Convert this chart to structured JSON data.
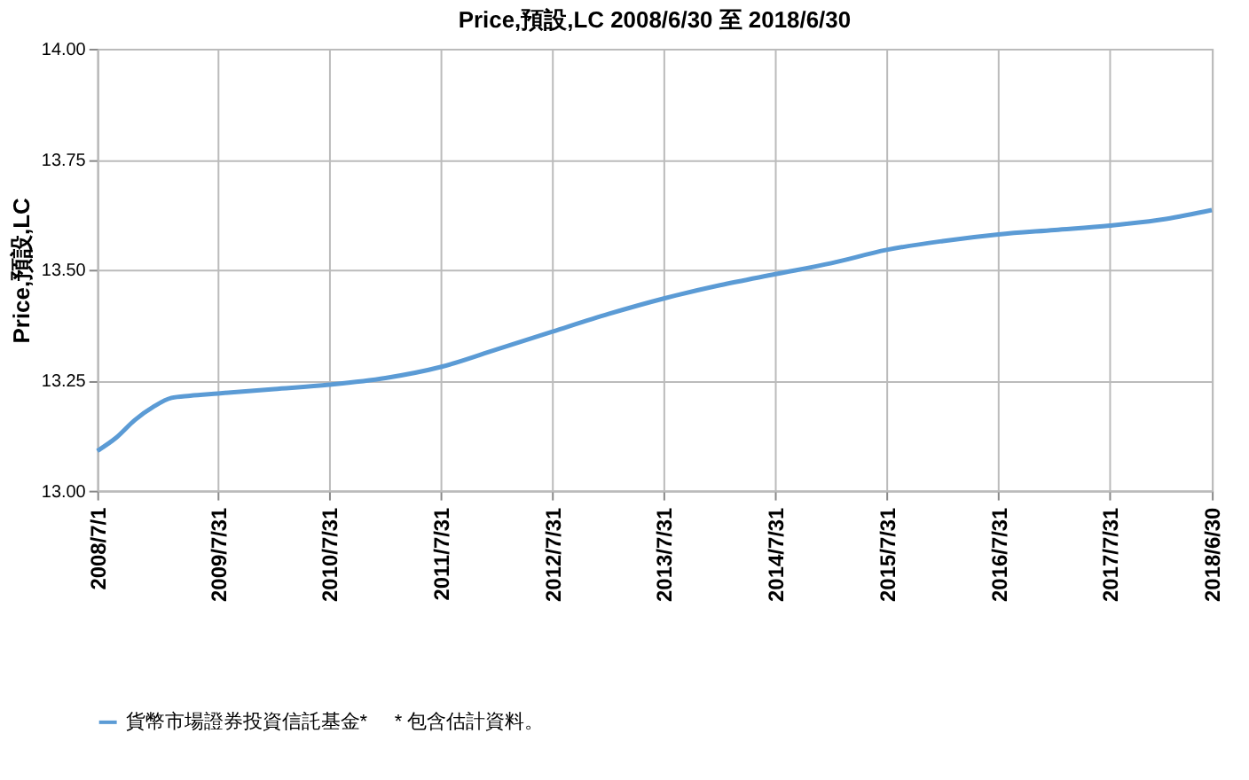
{
  "chart_data": {
    "type": "line",
    "title": "Price,預設,LC 2008/6/30 至 2018/6/30",
    "ylabel": "Price,預設,LC",
    "x": [
      "2008-07-01",
      "2008-09-01",
      "2008-11-01",
      "2009-01-01",
      "2009-03-01",
      "2009-05-01",
      "2009-07-31",
      "2010-01-31",
      "2010-07-31",
      "2011-01-31",
      "2011-07-31",
      "2012-01-31",
      "2012-07-31",
      "2013-01-31",
      "2013-07-31",
      "2014-01-31",
      "2014-07-31",
      "2015-01-31",
      "2015-07-31",
      "2016-01-31",
      "2016-07-31",
      "2017-01-31",
      "2017-07-31",
      "2018-01-31",
      "2018-06-30"
    ],
    "series": [
      {
        "name": "貨幣市場證券投資信託基金*",
        "color": "#5b9bd5",
        "values": [
          13.09,
          13.12,
          13.16,
          13.19,
          13.21,
          13.215,
          13.22,
          13.23,
          13.24,
          13.255,
          13.28,
          13.32,
          13.36,
          13.4,
          13.435,
          13.465,
          13.49,
          13.515,
          13.545,
          13.565,
          13.58,
          13.59,
          13.6,
          13.615,
          13.635
        ]
      }
    ],
    "xlim": [
      "2008-07-01",
      "2018-06-30"
    ],
    "xticks": [
      {
        "value": "2008-07-01",
        "label": "2008/7/1"
      },
      {
        "value": "2009-07-31",
        "label": "2009/7/31"
      },
      {
        "value": "2010-07-31",
        "label": "2010/7/31"
      },
      {
        "value": "2011-07-31",
        "label": "2011/7/31"
      },
      {
        "value": "2012-07-31",
        "label": "2012/7/31"
      },
      {
        "value": "2013-07-31",
        "label": "2013/7/31"
      },
      {
        "value": "2014-07-31",
        "label": "2014/7/31"
      },
      {
        "value": "2015-07-31",
        "label": "2015/7/31"
      },
      {
        "value": "2016-07-31",
        "label": "2016/7/31"
      },
      {
        "value": "2017-07-31",
        "label": "2017/7/31"
      },
      {
        "value": "2018-06-30",
        "label": "2018/6/30"
      }
    ],
    "ylim": [
      13.0,
      14.0
    ],
    "yticks": [
      {
        "value": 13.0,
        "label": "13.00"
      },
      {
        "value": 13.25,
        "label": "13.25"
      },
      {
        "value": 13.5,
        "label": "13.50"
      },
      {
        "value": 13.75,
        "label": "13.75"
      },
      {
        "value": 14.0,
        "label": "14.00"
      }
    ],
    "grid": true,
    "legend": "bottom",
    "marker": "none",
    "line_style": "solid",
    "annotations": [
      "* 包含估計資料。"
    ]
  }
}
